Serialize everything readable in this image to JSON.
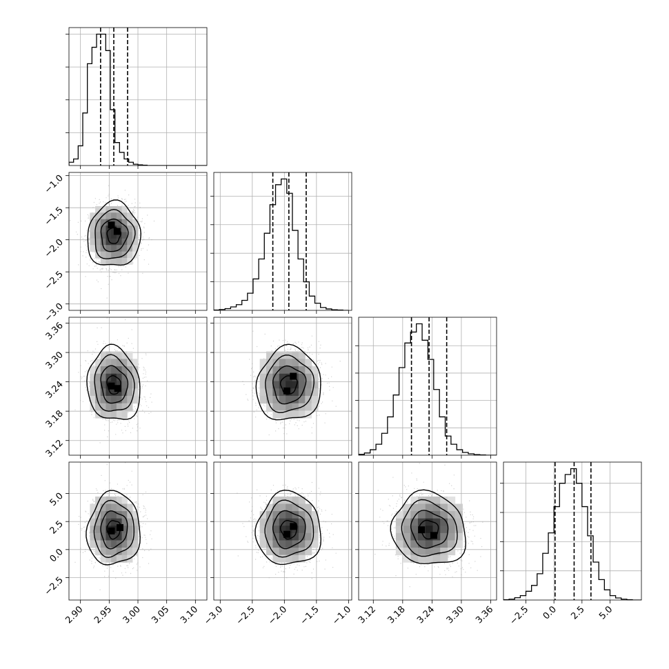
{
  "chart_data": {
    "type": "corner",
    "grid": true,
    "params": [
      {
        "range": [
          2.88,
          3.12
        ],
        "ticks": [
          2.9,
          2.95,
          3.0,
          3.05,
          3.1
        ],
        "tick_labels": [
          "2.90",
          "2.95",
          "3.00",
          "3.05",
          "3.10"
        ],
        "quantiles": [
          2.935,
          2.958,
          2.982
        ],
        "hist_edges_start": 2.88,
        "hist_bin_width": 0.008,
        "hist_counts": [
          1,
          2,
          6,
          16,
          31,
          36,
          40,
          40,
          35,
          17,
          7,
          4,
          2,
          1,
          0.4,
          0.2,
          0.1,
          0,
          0,
          0,
          0,
          0,
          0,
          0,
          0,
          0,
          0,
          0,
          0,
          0
        ],
        "hist_ticks": [
          10,
          20,
          30,
          40
        ]
      },
      {
        "range": [
          -3.1,
          -0.95
        ],
        "ticks": [
          -3.0,
          -2.5,
          -2.0,
          -1.5,
          -1.0
        ],
        "tick_labels": [
          "−3.0",
          "−2.5",
          "−2.0",
          "−1.5",
          "−1.0"
        ],
        "quantiles": [
          -2.18,
          -1.93,
          -1.66
        ],
        "hist_edges_start": -3.1,
        "hist_bin_width": 0.0875,
        "hist_counts": [
          0.1,
          0.3,
          0.6,
          1.2,
          2,
          3.5,
          6,
          11,
          18,
          27,
          37,
          44,
          46,
          41,
          28,
          18,
          10,
          5,
          2.5,
          1,
          0.5,
          0.2,
          0.1,
          0
        ],
        "hist_ticks": [
          10,
          20,
          30,
          40
        ]
      },
      {
        "range": [
          3.09,
          3.372
        ],
        "ticks": [
          3.12,
          3.18,
          3.24,
          3.3,
          3.36
        ],
        "tick_labels": [
          "3.12",
          "3.18",
          "3.24",
          "3.30",
          "3.36"
        ],
        "quantiles": [
          3.198,
          3.234,
          3.27
        ],
        "hist_edges_start": 3.09,
        "hist_bin_width": 0.0118,
        "hist_counts": [
          0.3,
          0.8,
          2,
          4,
          8,
          14,
          22,
          32,
          41,
          45,
          48,
          42,
          35,
          24,
          14,
          7,
          4,
          2,
          1,
          0.5,
          0.2,
          0.1,
          0,
          0
        ],
        "hist_ticks": [
          10,
          20,
          30,
          40
        ]
      },
      {
        "range": [
          -4.5,
          7.8
        ],
        "ticks": [
          -2.5,
          0.0,
          2.5,
          5.0
        ],
        "tick_labels": [
          "−2.5",
          "0.0",
          "2.5",
          "5.0"
        ],
        "quantiles": [
          0.1,
          1.8,
          3.3
        ],
        "hist_edges_start": -4.5,
        "hist_bin_width": 0.5,
        "hist_counts": [
          0.1,
          0.3,
          0.8,
          1.5,
          3,
          5,
          9,
          16,
          23,
          32,
          40,
          43,
          45,
          40,
          32,
          22,
          13,
          7,
          3.5,
          1.5,
          0.7,
          0.3,
          0.1,
          0,
          0
        ],
        "hist_ticks": [
          10,
          20,
          30,
          40
        ]
      }
    ],
    "means": [
      2.958,
      -1.93,
      3.234,
      1.8
    ],
    "sigmas": [
      0.022,
      0.24,
      0.036,
      1.55
    ],
    "correlations": {
      "1-0": 0.05,
      "2-0": -0.1,
      "2-1": 0.05,
      "3-0": 0.05,
      "3-1": 0.0,
      "3-2": -0.1
    },
    "contour_levels_sigma": [
      0.5,
      1.0,
      1.5,
      2.0
    ],
    "peak_cells": {
      "1-0": [
        [
          2.955,
          -1.78
        ],
        [
          2.965,
          -1.88
        ]
      ],
      "2-0": [
        [
          2.955,
          3.23
        ],
        [
          2.966,
          3.225
        ]
      ],
      "2-1": [
        [
          -1.95,
          3.22
        ],
        [
          -1.85,
          3.25
        ]
      ],
      "3-0": [
        [
          2.955,
          1.6
        ],
        [
          2.97,
          1.9
        ]
      ],
      "3-1": [
        [
          -1.95,
          1.3
        ],
        [
          -1.85,
          2.0
        ]
      ],
      "3-2": [
        [
          3.22,
          1.7
        ],
        [
          3.245,
          1.2
        ]
      ]
    }
  }
}
